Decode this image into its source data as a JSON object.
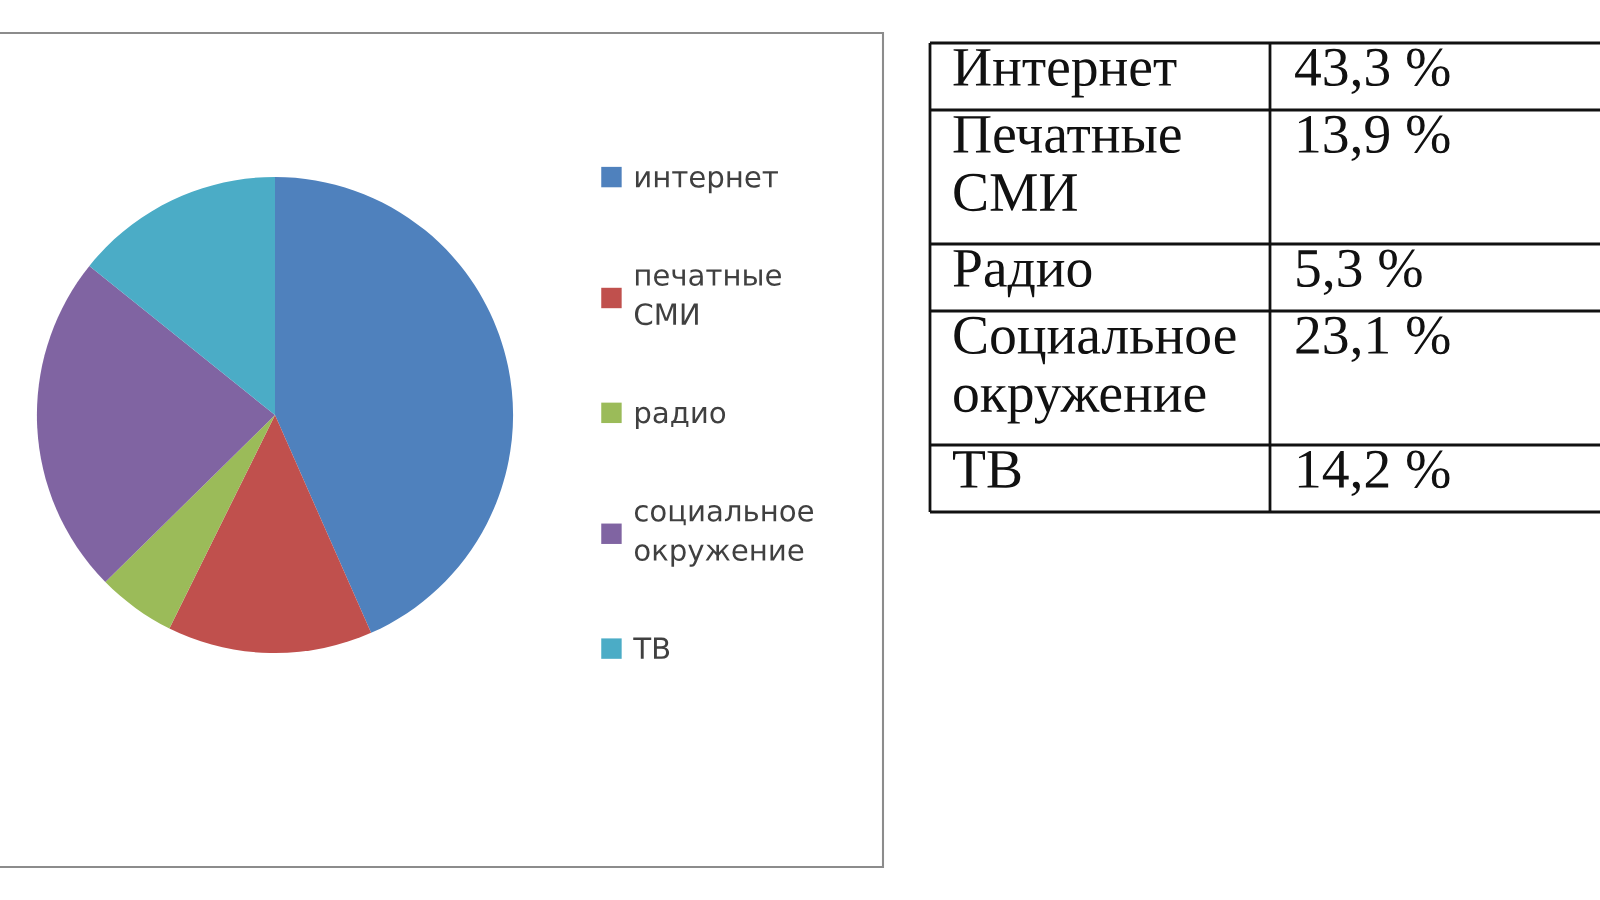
{
  "chart_data": {
    "type": "pie",
    "categories": [
      "интернет",
      "печатные СМИ",
      "радио",
      "социальное окружение",
      "ТВ"
    ],
    "values": [
      43.3,
      13.9,
      5.3,
      23.1,
      14.2
    ],
    "colors": [
      "#4f81bd",
      "#c0504d",
      "#9bbb59",
      "#8064a2",
      "#4bacc6"
    ],
    "legend": "right",
    "annotations": [
      "Интернет",
      "43,3 %",
      "Печатные СМИ",
      "13,9 %",
      "Радио",
      "5,3 %",
      "Социальное окружение",
      "23,1 %",
      "ТВ",
      "14,2 %"
    ]
  }
}
